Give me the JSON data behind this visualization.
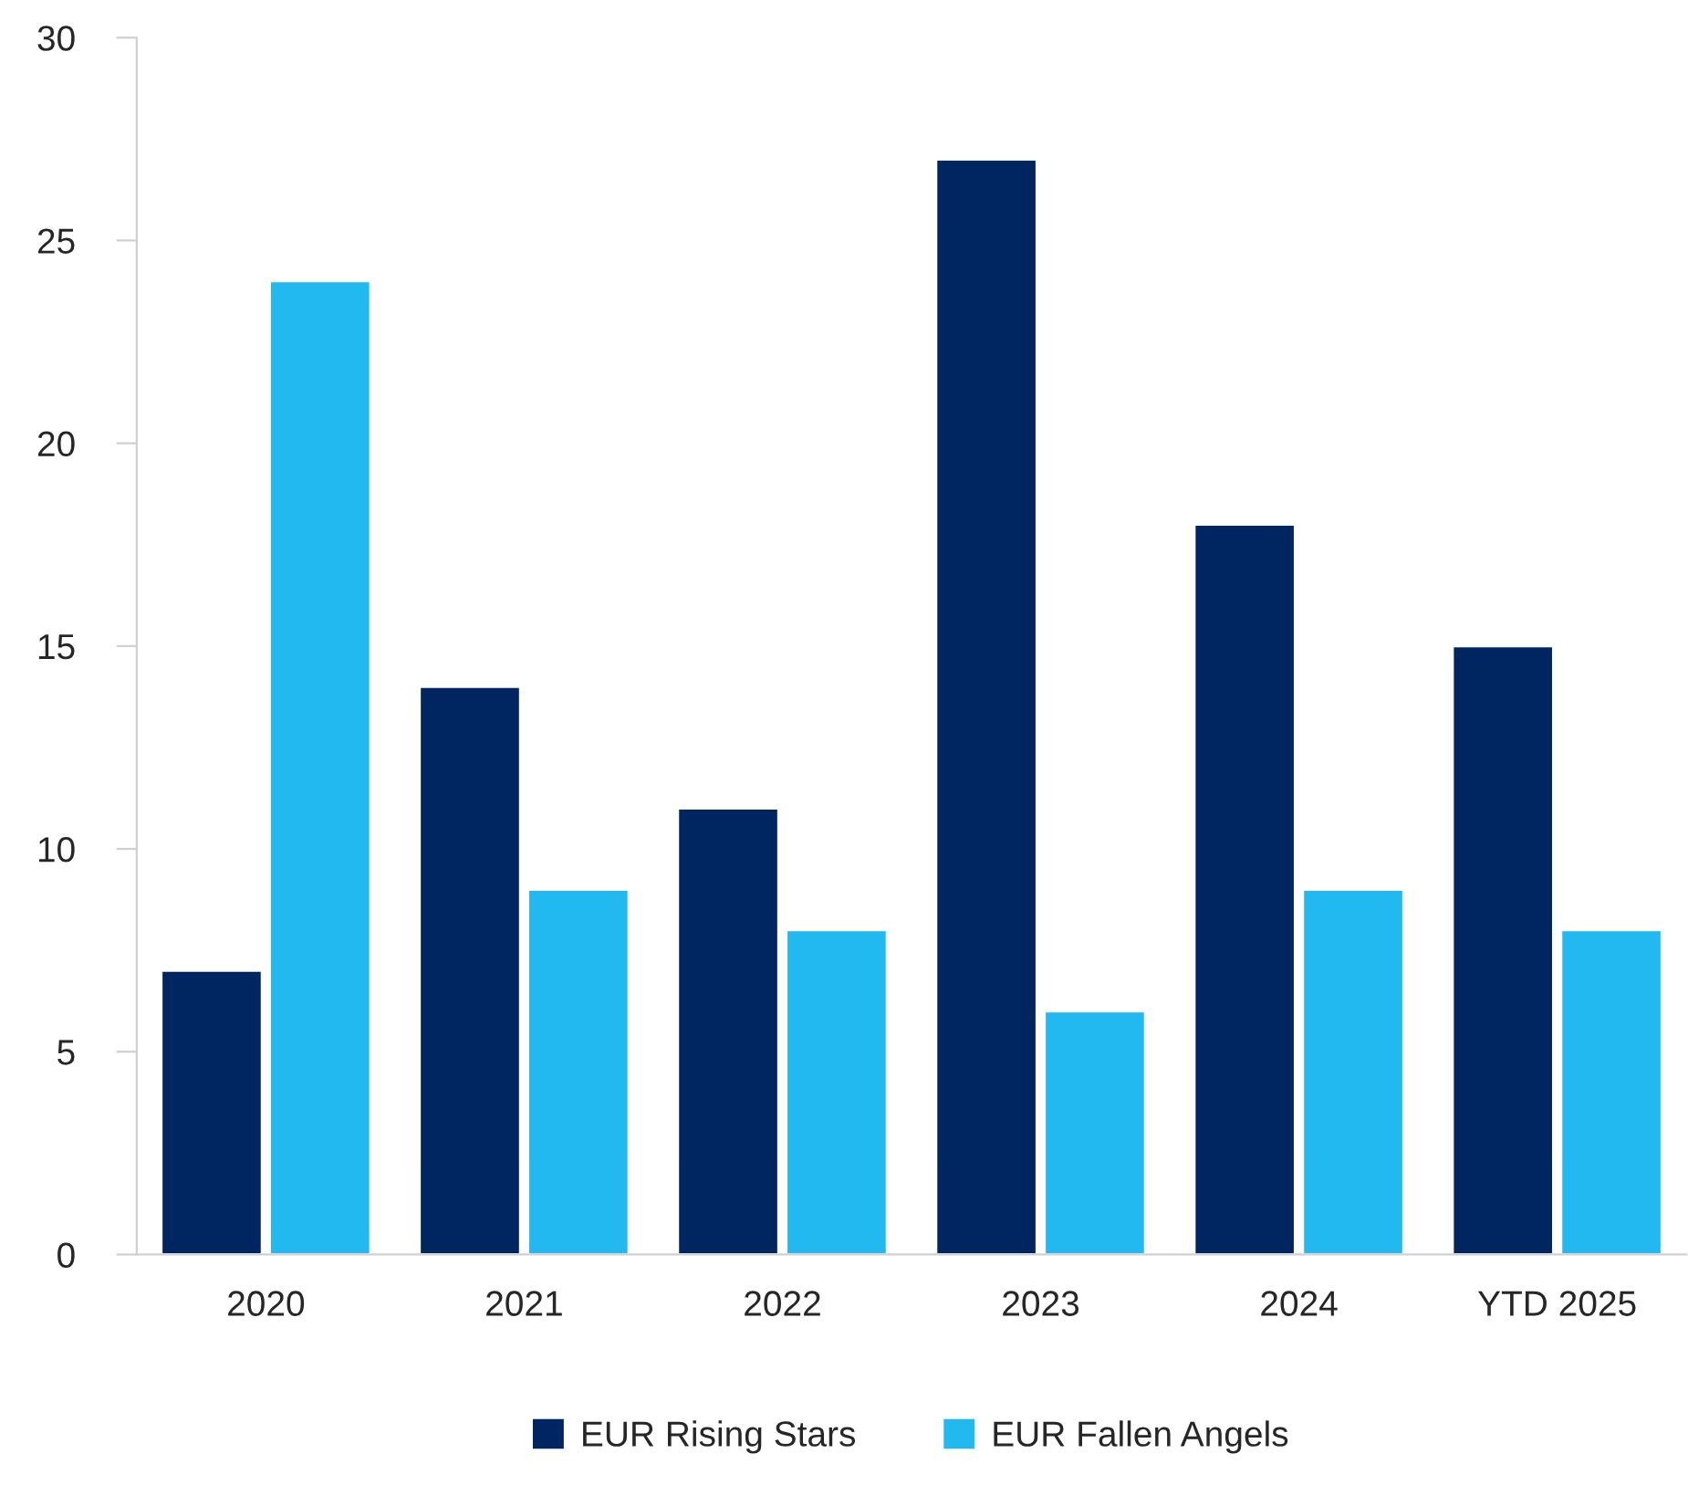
{
  "chart_data": {
    "type": "bar",
    "categories": [
      "2020",
      "2021",
      "2022",
      "2023",
      "2024",
      "YTD 2025"
    ],
    "series": [
      {
        "name": "EUR Rising Stars",
        "color": "#002662",
        "values": [
          7,
          14,
          11,
          27,
          18,
          15
        ]
      },
      {
        "name": "EUR Fallen Angels",
        "color": "#22b8f0",
        "values": [
          24,
          9,
          8,
          6,
          9,
          8
        ]
      }
    ],
    "ylim": [
      0,
      30
    ],
    "yticks": [
      0,
      5,
      10,
      15,
      20,
      25,
      30
    ],
    "grid": false,
    "legend": "bottom"
  }
}
